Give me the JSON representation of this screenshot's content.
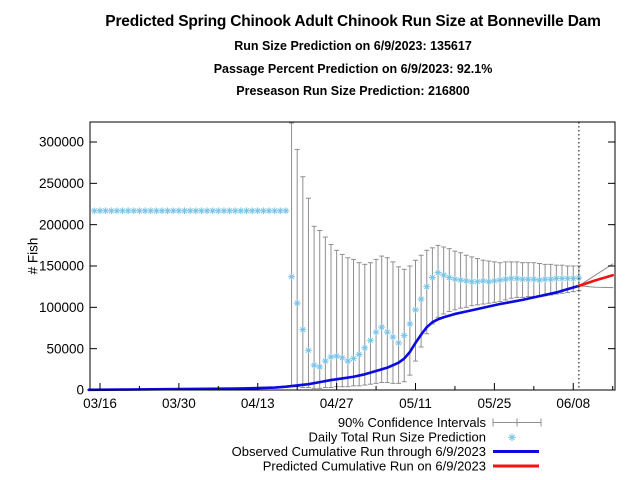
{
  "header": {
    "title": "Predicted Spring Chinook Adult Chinook Run Size at Bonneville Dam",
    "subtitles": [
      "Run Size Prediction on 6/9/2023: 135617",
      "Passage Percent Prediction on 6/9/2023: 92.1%",
      "Preseason Run Size Prediction: 216800"
    ]
  },
  "axis": {
    "ylabel": "# Fish"
  },
  "legend": {
    "entries": [
      {
        "label": "90% Confidence Intervals",
        "symbol": "error-bar",
        "color": "#8f8f8f"
      },
      {
        "label": "Daily Total Run Size Prediction",
        "symbol": "asterisk",
        "color": "#79c4e8"
      },
      {
        "label": "Observed Cumulative Run through 6/9/2023",
        "symbol": "line",
        "color": "#0b0be0"
      },
      {
        "label": "Predicted Cumulative Run on 6/9/2023",
        "symbol": "line",
        "color": "#f21414"
      }
    ]
  },
  "chart_data": {
    "type": "line",
    "title": "Predicted Spring Chinook Adult Chinook Run Size at Bonneville Dam",
    "xlabel": "",
    "ylabel": "# Fish",
    "ylim": [
      0,
      324000
    ],
    "xlim": [
      "03/14",
      "06/15"
    ],
    "grid": false,
    "legend_position": "below",
    "y_ticks": [
      0,
      50000,
      100000,
      150000,
      200000,
      250000,
      300000
    ],
    "x_ticks": [
      "03/16",
      "03/30",
      "04/13",
      "04/27",
      "05/11",
      "05/25",
      "06/08"
    ],
    "x_minor_ticks": [
      "03/23",
      "04/06",
      "04/20",
      "05/04",
      "05/18",
      "06/01",
      "06/15"
    ],
    "prediction_date_line": "06/09",
    "colors": {
      "daily_points": "#79c4e8",
      "observed_line": "#0b0be0",
      "predicted_line": "#f21414",
      "confidence": "#8f8f8f",
      "axis": "#000000"
    },
    "preseason_prediction": {
      "start": "03/15",
      "end": "04/18",
      "value": 216800
    },
    "daily_prediction": {
      "dates": [
        "04/19",
        "04/20",
        "04/21",
        "04/22",
        "04/23",
        "04/24",
        "04/25",
        "04/26",
        "04/27",
        "04/28",
        "04/29",
        "04/30",
        "05/01",
        "05/02",
        "05/03",
        "05/04",
        "05/05",
        "05/06",
        "05/07",
        "05/08",
        "05/09",
        "05/10",
        "05/11",
        "05/12",
        "05/13",
        "05/14",
        "05/15",
        "05/16",
        "05/17",
        "05/18",
        "05/19",
        "05/20",
        "05/21",
        "05/22",
        "05/23",
        "05/24",
        "05/25",
        "05/26",
        "05/27",
        "05/28",
        "05/29",
        "05/30",
        "05/31",
        "06/01",
        "06/02",
        "06/03",
        "06/04",
        "06/05",
        "06/06",
        "06/07",
        "06/08",
        "06/09"
      ],
      "values": [
        137000,
        105000,
        73000,
        48000,
        30000,
        28000,
        35000,
        40000,
        41000,
        39000,
        35000,
        38000,
        43000,
        51000,
        60000,
        70000,
        76000,
        70000,
        64000,
        57000,
        66000,
        80000,
        97000,
        110000,
        125000,
        136000,
        142000,
        139000,
        136000,
        134000,
        133000,
        132000,
        131000,
        131000,
        132000,
        131000,
        132000,
        133000,
        134000,
        135000,
        135000,
        134000,
        134000,
        134000,
        133000,
        134000,
        134000,
        135000,
        135000,
        135000,
        135000,
        135617
      ],
      "lo": [
        5000,
        4000,
        3000,
        3000,
        2000,
        2000,
        3000,
        3000,
        4000,
        4000,
        4000,
        5000,
        5000,
        6000,
        7000,
        8000,
        9000,
        9000,
        8000,
        8000,
        10000,
        18000,
        35000,
        52000,
        68000,
        80000,
        88000,
        92000,
        95000,
        97000,
        99000,
        100000,
        102000,
        103000,
        104000,
        105000,
        106000,
        107000,
        109000,
        111000,
        112000,
        112000,
        113000,
        113000,
        114000,
        114000,
        115000,
        116000,
        117000,
        118000,
        119000,
        120000
      ],
      "hi": [
        323000,
        291000,
        258000,
        232000,
        198000,
        193000,
        185000,
        176000,
        169000,
        164000,
        160000,
        158000,
        154000,
        152000,
        154000,
        158000,
        162000,
        160000,
        155000,
        149000,
        146000,
        150000,
        157000,
        163000,
        169000,
        172000,
        175000,
        173000,
        171000,
        168000,
        166000,
        163000,
        161000,
        159000,
        157000,
        156000,
        155000,
        154000,
        155000,
        155000,
        155000,
        154000,
        154000,
        154000,
        153000,
        152000,
        152000,
        151000,
        151000,
        150000,
        150000,
        150000
      ]
    },
    "observed_cumulative": {
      "points": [
        [
          "03/14",
          200
        ],
        [
          "03/20",
          500
        ],
        [
          "03/25",
          800
        ],
        [
          "03/30",
          1100
        ],
        [
          "04/04",
          1400
        ],
        [
          "04/09",
          1800
        ],
        [
          "04/13",
          2300
        ],
        [
          "04/16",
          3000
        ],
        [
          "04/18",
          4000
        ],
        [
          "04/20",
          5500
        ],
        [
          "04/22",
          7000
        ],
        [
          "04/24",
          9500
        ],
        [
          "04/26",
          12000
        ],
        [
          "04/28",
          14000
        ],
        [
          "04/30",
          16000
        ],
        [
          "05/02",
          19000
        ],
        [
          "05/04",
          23000
        ],
        [
          "05/06",
          27000
        ],
        [
          "05/07",
          30000
        ],
        [
          "05/08",
          33000
        ],
        [
          "05/09",
          38000
        ],
        [
          "05/10",
          46000
        ],
        [
          "05/11",
          57000
        ],
        [
          "05/12",
          67000
        ],
        [
          "05/13",
          76000
        ],
        [
          "05/14",
          82000
        ],
        [
          "05/15",
          85500
        ],
        [
          "05/16",
          88000
        ],
        [
          "05/18",
          92000
        ],
        [
          "05/20",
          95000
        ],
        [
          "05/22",
          98000
        ],
        [
          "05/24",
          101000
        ],
        [
          "05/26",
          104000
        ],
        [
          "05/28",
          106500
        ],
        [
          "05/30",
          109000
        ],
        [
          "06/01",
          112000
        ],
        [
          "06/03",
          115000
        ],
        [
          "06/05",
          118000
        ],
        [
          "06/07",
          122000
        ],
        [
          "06/09",
          126000
        ]
      ]
    },
    "predicted_cumulative": {
      "points": [
        [
          "06/09",
          126000
        ],
        [
          "06/12",
          132800
        ],
        [
          "06/15",
          138800
        ]
      ]
    },
    "confidence_fan": {
      "upper": [
        [
          "06/09",
          126000
        ],
        [
          "06/15",
          152500
        ]
      ],
      "lower": [
        [
          "06/09",
          126000
        ],
        [
          "06/12",
          124300
        ],
        [
          "06/15",
          123900
        ]
      ]
    }
  }
}
